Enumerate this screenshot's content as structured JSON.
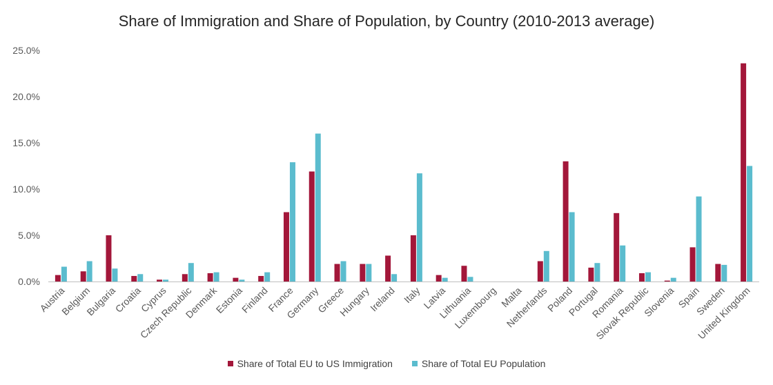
{
  "chart_data": {
    "type": "bar",
    "title": "Share of Immigration and Share of Population, by Country (2010-2013 average)",
    "xlabel": "",
    "ylabel": "",
    "ylim": [
      0,
      25
    ],
    "y_ticks": [
      "0.0%",
      "5.0%",
      "10.0%",
      "15.0%",
      "20.0%",
      "25.0%"
    ],
    "grid": false,
    "legend_position": "bottom",
    "categories": [
      "Austria",
      "Belgium",
      "Bulgaria",
      "Croatia",
      "Cyprus",
      "Czech Republic",
      "Denmark",
      "Estonia",
      "Finland",
      "France",
      "Germany",
      "Greece",
      "Hungary",
      "Ireland",
      "Italy",
      "Latvia",
      "Lithuania",
      "Luxembourg",
      "Malta",
      "Netherlands",
      "Poland",
      "Portugal",
      "Romania",
      "Slovak Republic",
      "Slovenia",
      "Spain",
      "Sweden",
      "United Kingdom"
    ],
    "series": [
      {
        "name": "Share of Total EU to US Immigration",
        "color": "#A3173A",
        "values": [
          0.7,
          1.1,
          5.0,
          0.6,
          0.2,
          0.8,
          0.9,
          0.4,
          0.6,
          7.5,
          11.9,
          1.9,
          1.9,
          2.8,
          5.0,
          0.7,
          1.7,
          0.0,
          0.0,
          2.2,
          13.0,
          1.5,
          7.4,
          0.9,
          0.1,
          3.7,
          1.9,
          23.6
        ]
      },
      {
        "name": "Share of Total EU Population",
        "color": "#5BBCCE",
        "values": [
          1.6,
          2.2,
          1.4,
          0.8,
          0.2,
          2.0,
          1.0,
          0.2,
          1.0,
          12.9,
          16.0,
          2.2,
          1.9,
          0.8,
          11.7,
          0.4,
          0.5,
          0.0,
          0.0,
          3.3,
          7.5,
          2.0,
          3.9,
          1.0,
          0.4,
          9.2,
          1.8,
          12.5
        ]
      }
    ]
  }
}
